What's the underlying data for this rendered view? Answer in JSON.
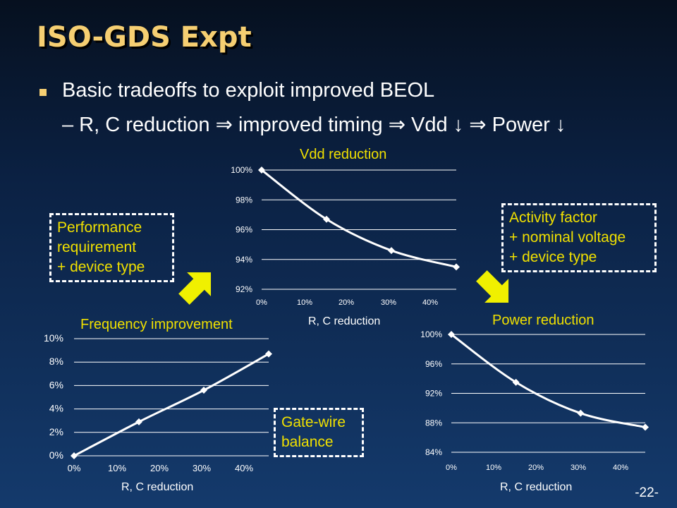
{
  "slide": {
    "title": "ISO-GDS Expt",
    "bullet1": "Basic tradeoffs to exploit improved BEOL",
    "bullet2": "– R, C reduction ⇒ improved timing ⇒ Vdd ↓ ⇒ Power ↓",
    "page_number": "-22-"
  },
  "callouts": {
    "performance": "Performance\nrequirement\n+ device type",
    "activity": "Activity factor\n+ nominal voltage\n+ device type",
    "gatewire": "Gate-wire\nbalance"
  },
  "colors": {
    "title": "#f6cf72",
    "chart_title": "#f0e000",
    "arrow": "#f0f000",
    "line": "#ffffff"
  },
  "chart_data": [
    {
      "id": "vdd",
      "type": "line",
      "title": "Vdd reduction",
      "xlabel": "R, C reduction",
      "ylabel": "",
      "x_ticks": [
        "0%",
        "10%",
        "20%",
        "30%",
        "40%"
      ],
      "y_ticks": [
        "92%",
        "94%",
        "96%",
        "98%",
        "100%"
      ],
      "xlim": [
        0,
        45
      ],
      "ylim": [
        92,
        100
      ],
      "yticks_values": [
        92,
        94,
        96,
        98,
        100
      ],
      "x": [
        0,
        15,
        30,
        45
      ],
      "y": [
        100,
        96.7,
        94.6,
        93.5
      ],
      "grid": true
    },
    {
      "id": "freq",
      "type": "line",
      "title": "Frequency improvement",
      "xlabel": "R, C reduction",
      "ylabel": "",
      "x_ticks": [
        "0%",
        "10%",
        "20%",
        "30%",
        "40%"
      ],
      "y_ticks": [
        "0%",
        "2%",
        "4%",
        "6%",
        "8%",
        "10%"
      ],
      "xlim": [
        0,
        45
      ],
      "ylim": [
        0,
        10
      ],
      "yticks_values": [
        0,
        2,
        4,
        6,
        8,
        10
      ],
      "x": [
        0,
        15,
        30,
        45
      ],
      "y": [
        0,
        2.9,
        5.6,
        8.7
      ],
      "grid": true
    },
    {
      "id": "power",
      "type": "line",
      "title": "Power reduction",
      "xlabel": "R, C reduction",
      "ylabel": "",
      "x_ticks": [
        "0%",
        "10%",
        "20%",
        "30%",
        "40%"
      ],
      "y_ticks": [
        "84%",
        "88%",
        "92%",
        "96%",
        "100%"
      ],
      "xlim": [
        0,
        45
      ],
      "ylim": [
        84,
        100
      ],
      "yticks_values": [
        84,
        88,
        92,
        96,
        100
      ],
      "x": [
        0,
        15,
        30,
        45
      ],
      "y": [
        100,
        93.5,
        89.3,
        87.4
      ],
      "grid": true
    }
  ]
}
